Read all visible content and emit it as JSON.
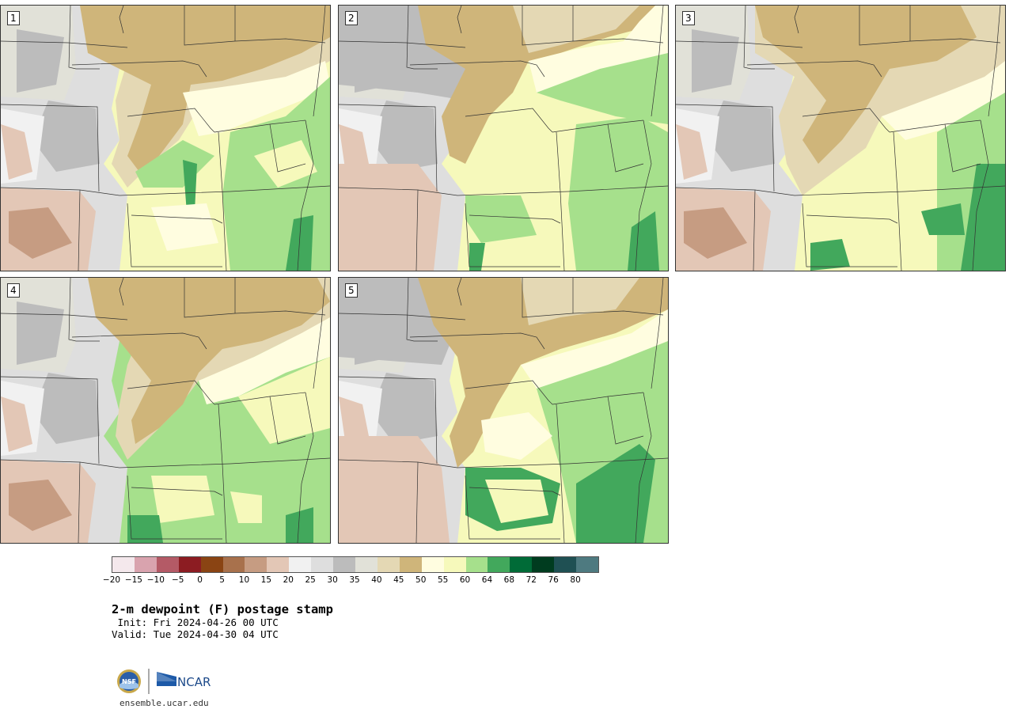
{
  "panels": [
    {
      "label": "1"
    },
    {
      "label": "2"
    },
    {
      "label": "3"
    },
    {
      "label": "4"
    },
    {
      "label": "5"
    }
  ],
  "colorbar": {
    "colors": [
      "#f4e8ec",
      "#d9a3ae",
      "#b45a66",
      "#8c1c22",
      "#8a4413",
      "#a8714c",
      "#c69c82",
      "#e3c7b6",
      "#f1f1f1",
      "#dedede",
      "#bcbcbc",
      "#e1e1d8",
      "#e4d8b4",
      "#cfb57a",
      "#fffde0",
      "#f6f9bb",
      "#a6e08c",
      "#42a85c",
      "#006b37",
      "#003c1f",
      "#1f5053",
      "#4e7a80"
    ],
    "tick_labels": [
      "−20",
      "−15",
      "−10",
      "−5",
      "0",
      "5",
      "10",
      "15",
      "20",
      "25",
      "30",
      "35",
      "40",
      "45",
      "50",
      "55",
      "60",
      "64",
      "68",
      "72",
      "76",
      "80"
    ]
  },
  "title": "2-m dewpoint (F) postage stamp",
  "init": " Init: Fri 2024-04-26 00 UTC",
  "valid": "Valid: Tue 2024-04-30 04 UTC",
  "logos": {
    "nsf": "NSF",
    "ncar": "NCAR"
  },
  "site": "ensemble.ucar.edu"
}
